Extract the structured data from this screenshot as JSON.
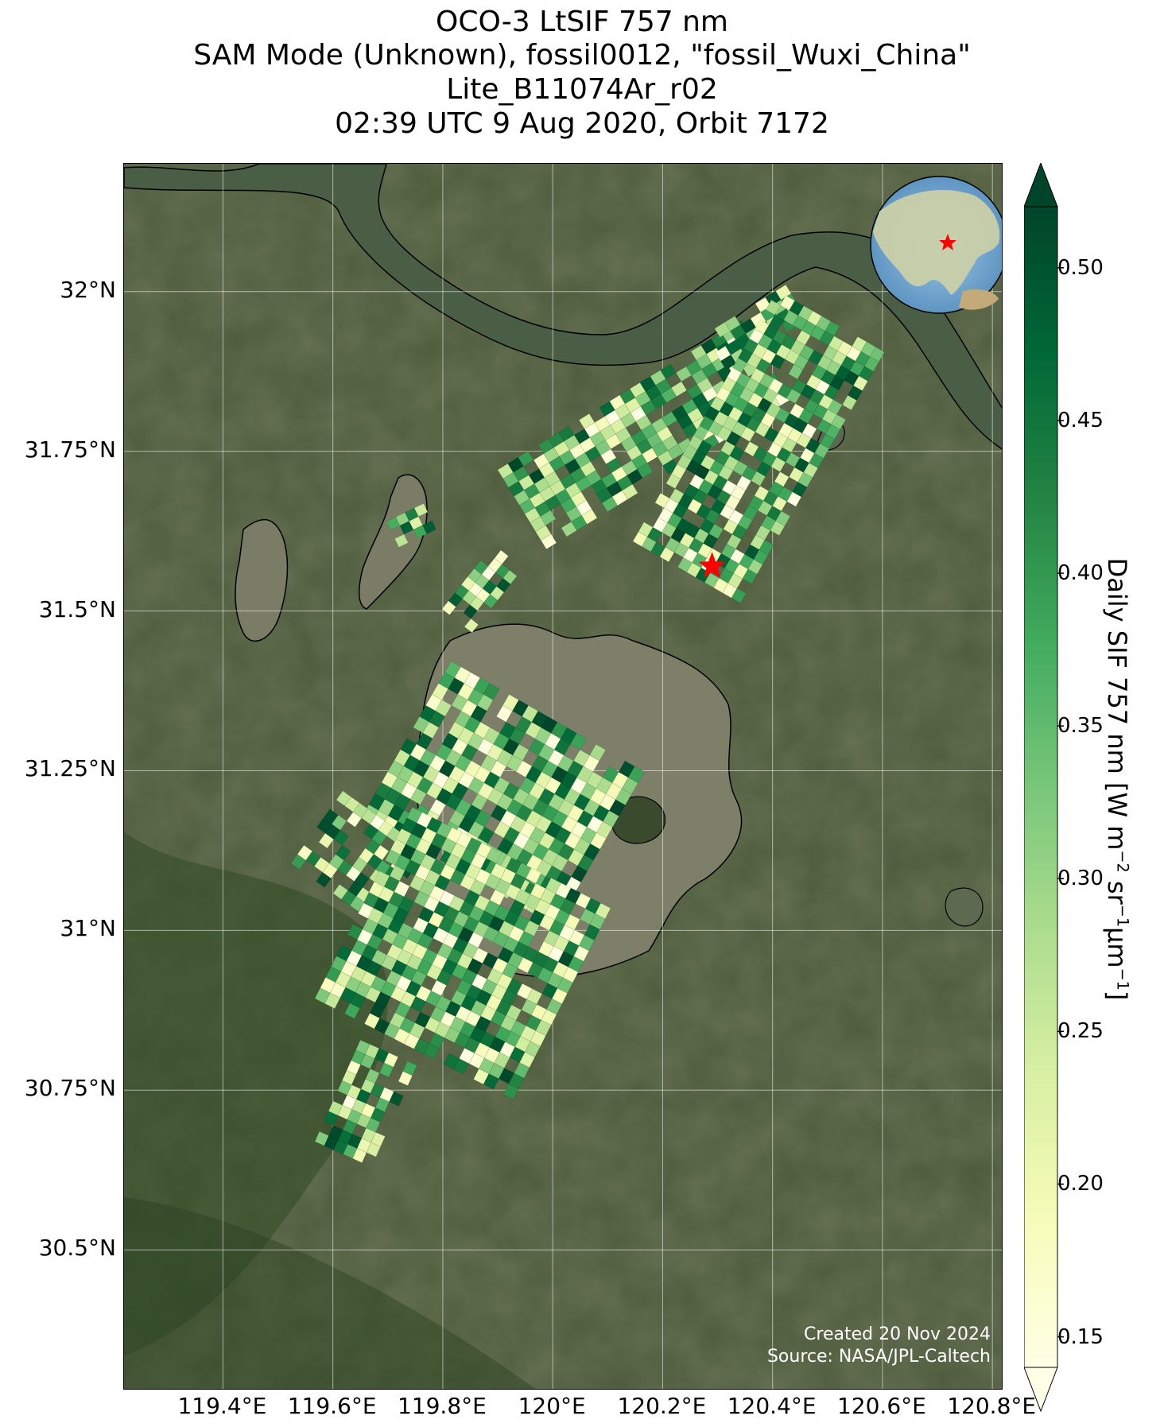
{
  "title": {
    "line1": "OCO-3 LtSIF 757 nm",
    "line2": "SAM Mode (Unknown), fossil0012, \"fossil_Wuxi_China\"",
    "line3": "Lite_B11074Ar_r02",
    "line4": "02:39 UTC 9 Aug 2020, Orbit 7172"
  },
  "map": {
    "lon_range": [
      119.22,
      120.82
    ],
    "lat_range": [
      30.28,
      32.2
    ],
    "lon_ticks": [
      {
        "value": 119.4,
        "label": "119.4°E"
      },
      {
        "value": 119.6,
        "label": "119.6°E"
      },
      {
        "value": 119.8,
        "label": "119.8°E"
      },
      {
        "value": 120.0,
        "label": "120°E"
      },
      {
        "value": 120.2,
        "label": "120.2°E"
      },
      {
        "value": 120.4,
        "label": "120.4°E"
      },
      {
        "value": 120.6,
        "label": "120.6°E"
      },
      {
        "value": 120.8,
        "label": "120.8°E"
      }
    ],
    "lat_ticks": [
      {
        "value": 32.0,
        "label": "32°N"
      },
      {
        "value": 31.75,
        "label": "31.75°N"
      },
      {
        "value": 31.5,
        "label": "31.5°N"
      },
      {
        "value": 31.25,
        "label": "31.25°N"
      },
      {
        "value": 31.0,
        "label": "31°N"
      },
      {
        "value": 30.75,
        "label": "30.75°N"
      },
      {
        "value": 30.5,
        "label": "30.5°N"
      }
    ],
    "target": {
      "lon": 120.29,
      "lat": 31.57
    },
    "colors": {
      "target_star": "#ff0000",
      "land": "#4b5a37",
      "lake": "#7d7f68",
      "river": "#4a5e45"
    }
  },
  "colorbar": {
    "label_main": "Daily SIF 757 nm [W m",
    "label_sup1": "−2",
    "label_mid": " sr",
    "label_sup2": "−1",
    "label_mid2": "μm",
    "label_sup3": "−1",
    "label_end": "]",
    "min": 0.14,
    "max": 0.52,
    "ticks": [
      {
        "value": 0.15,
        "label": "0.15"
      },
      {
        "value": 0.2,
        "label": "0.20"
      },
      {
        "value": 0.25,
        "label": "0.25"
      },
      {
        "value": 0.3,
        "label": "0.30"
      },
      {
        "value": 0.35,
        "label": "0.35"
      },
      {
        "value": 0.4,
        "label": "0.40"
      },
      {
        "value": 0.45,
        "label": "0.45"
      },
      {
        "value": 0.5,
        "label": "0.50"
      }
    ],
    "colormap": [
      "#ffffe5",
      "#f7fcb9",
      "#d9f0a3",
      "#addd8e",
      "#78c679",
      "#41ab5d",
      "#238443",
      "#006837",
      "#004529"
    ]
  },
  "credit": {
    "line1": "Created 20 Nov 2024",
    "line2": "Source: NASA/JPL-Caltech"
  }
}
